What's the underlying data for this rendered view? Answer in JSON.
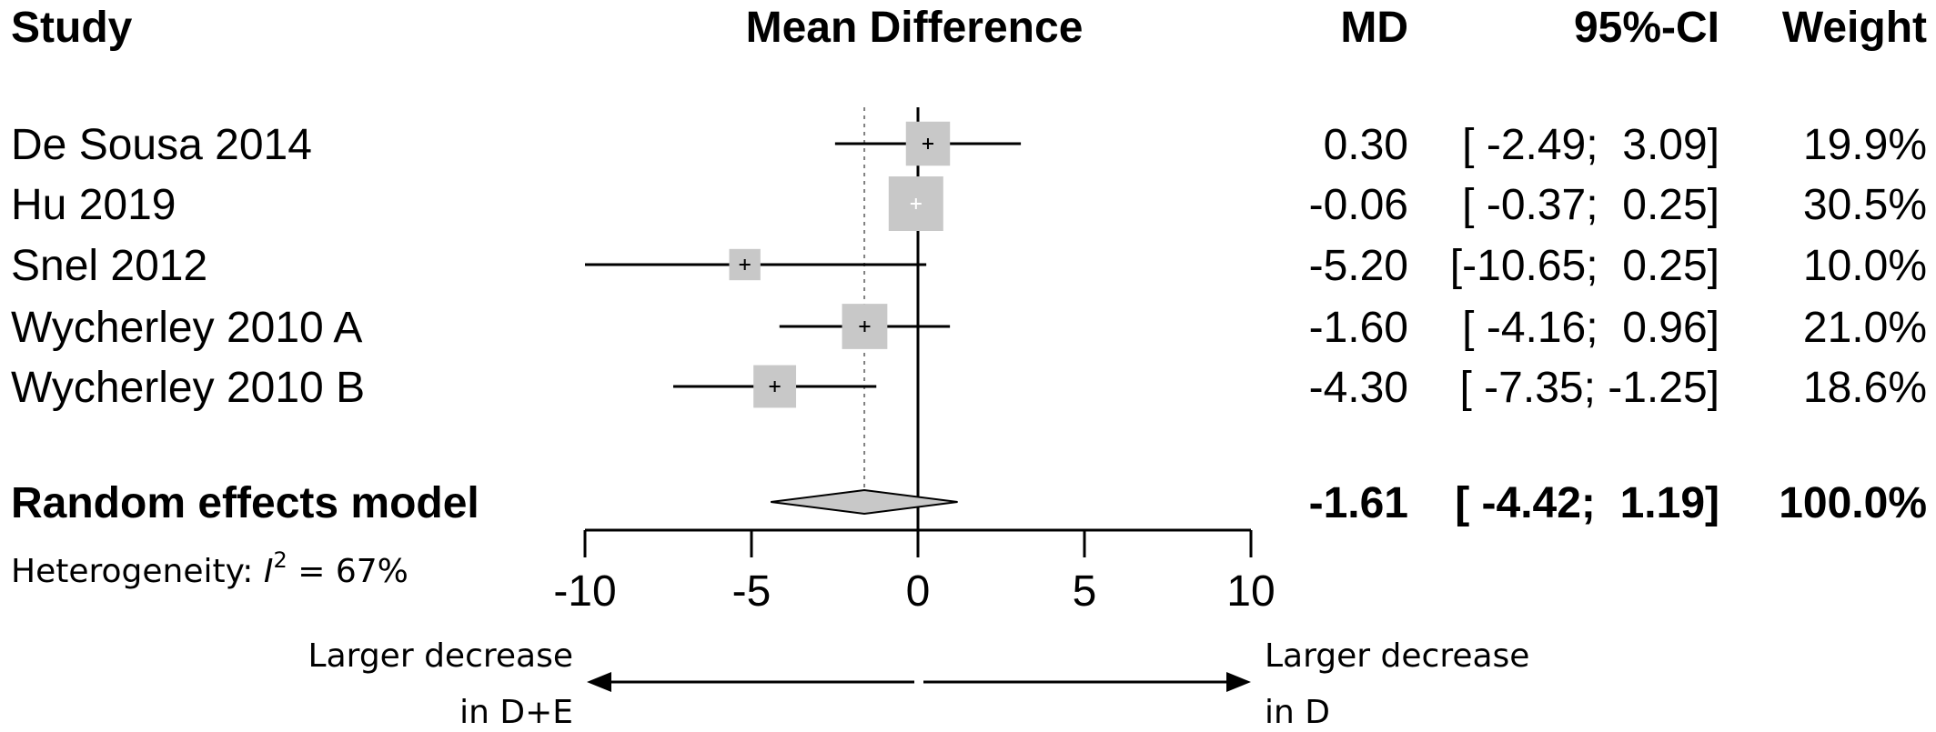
{
  "columns": {
    "study": "Study",
    "plot": "Mean Difference",
    "md": "MD",
    "ci": "95%-CI",
    "weight": "Weight"
  },
  "chart_data": {
    "type": "forest",
    "xlim": [
      -10,
      10
    ],
    "xticks": [
      "-10",
      "-5",
      "0",
      "5",
      "10"
    ],
    "reference_line": 0,
    "studies": [
      {
        "name": "De Sousa 2014",
        "md": 0.3,
        "lower": -2.49,
        "upper": 3.09,
        "weight": 19.9,
        "md_text": "0.30",
        "ci_text": "[ -2.49;  3.09]",
        "weight_text": "19.9%"
      },
      {
        "name": "Hu 2019",
        "md": -0.06,
        "lower": -0.37,
        "upper": 0.25,
        "weight": 30.5,
        "md_text": "-0.06",
        "ci_text": "[ -0.37;  0.25]",
        "weight_text": "30.5%"
      },
      {
        "name": "Snel 2012",
        "md": -5.2,
        "lower": -10.65,
        "upper": 0.25,
        "weight": 10.0,
        "md_text": "-5.20",
        "ci_text": "[-10.65;  0.25]",
        "weight_text": "10.0%"
      },
      {
        "name": "Wycherley 2010 A",
        "md": -1.6,
        "lower": -4.16,
        "upper": 0.96,
        "weight": 21.0,
        "md_text": "-1.60",
        "ci_text": "[ -4.16;  0.96]",
        "weight_text": "21.0%"
      },
      {
        "name": "Wycherley 2010 B",
        "md": -4.3,
        "lower": -7.35,
        "upper": -1.25,
        "weight": 18.6,
        "md_text": "-4.30",
        "ci_text": "[ -7.35; -1.25]",
        "weight_text": "18.6%"
      }
    ],
    "pooled": {
      "name": "Random effects model",
      "md": -1.61,
      "lower": -4.42,
      "upper": 1.19,
      "weight": 100.0,
      "md_text": "-1.61",
      "ci_text": "[ -4.42;  1.19]",
      "weight_text": "100.0%"
    },
    "heterogeneity": {
      "prefix": "Heterogeneity: ",
      "symbol": "I",
      "exponent": "2",
      "value": " = 67%"
    },
    "direction_left": [
      "Larger decrease",
      "in D+E"
    ],
    "direction_right": [
      "Larger decrease",
      "in D"
    ],
    "colors": {
      "box": "#c8c8c8",
      "line": "#000000",
      "diamond": "#c8c8c8",
      "pooled_ref": "#808080"
    }
  }
}
